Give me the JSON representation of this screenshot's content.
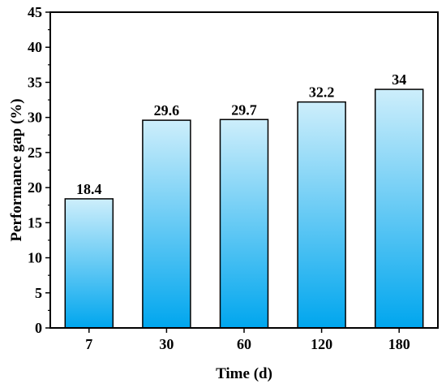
{
  "chart_data": {
    "type": "bar",
    "categories": [
      "7",
      "30",
      "60",
      "120",
      "180"
    ],
    "values": [
      18.4,
      29.6,
      29.7,
      32.2,
      34
    ],
    "data_labels": [
      "18.4",
      "29.6",
      "29.7",
      "32.2",
      "34"
    ],
    "title": "",
    "xlabel": "Time (d)",
    "ylabel": "Performance gap (%)",
    "ylim": [
      0,
      45
    ],
    "yticks": [
      0,
      5,
      10,
      15,
      20,
      25,
      30,
      35,
      40,
      45
    ],
    "grid": false,
    "legend": "none",
    "colors": {
      "bar_top": "#cdeefb",
      "bar_bottom": "#00a6ee",
      "bar_outline": "#000000",
      "axis": "#000000"
    }
  }
}
